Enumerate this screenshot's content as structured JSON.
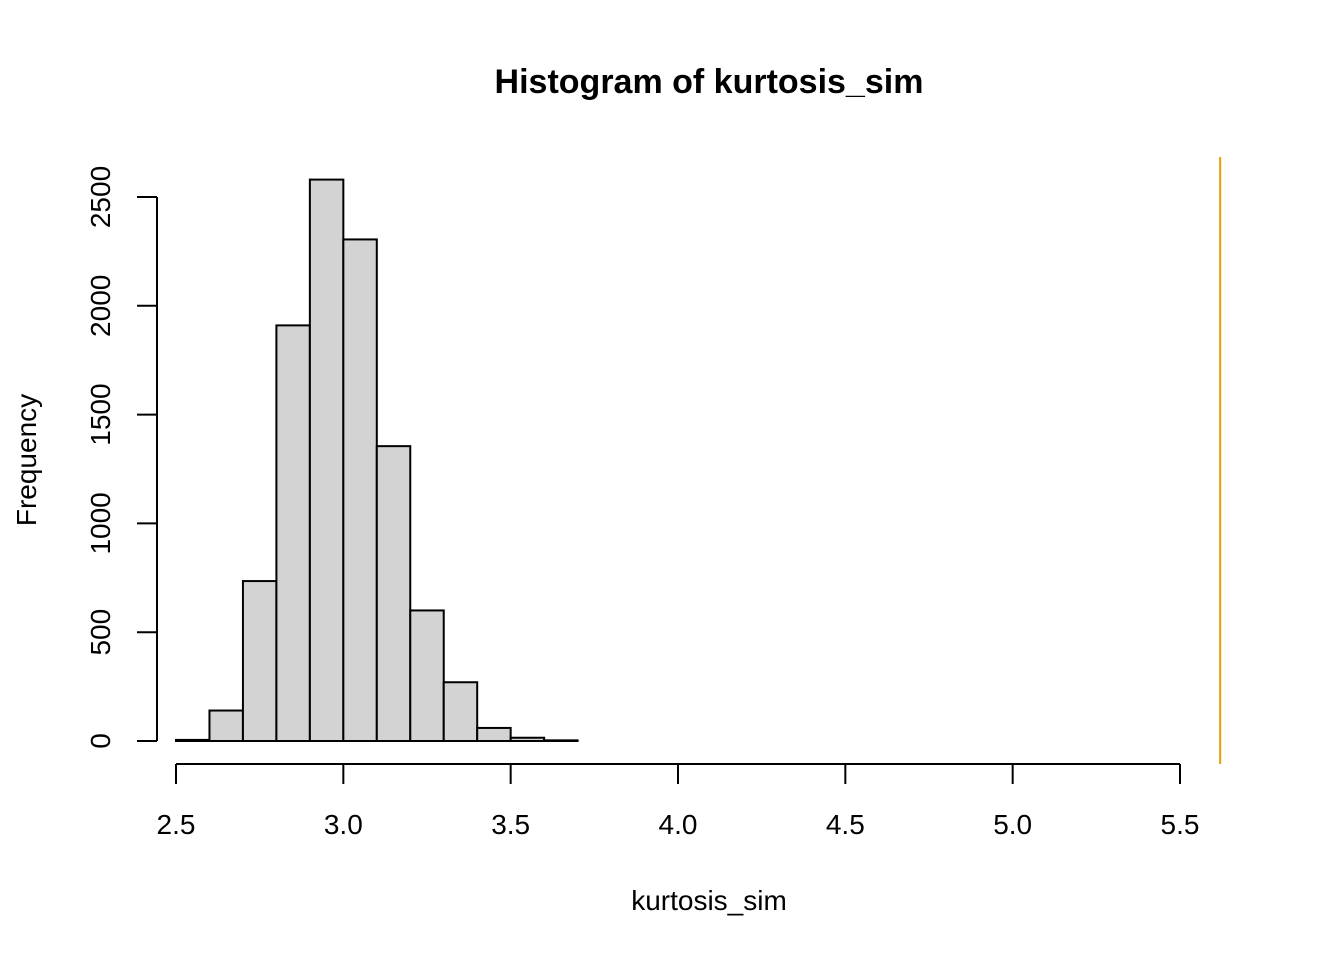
{
  "chart_data": {
    "type": "bar",
    "title": "Histogram of kurtosis_sim",
    "xlabel": "kurtosis_sim",
    "ylabel": "Frequency",
    "xlim": [
      2.5,
      5.5
    ],
    "ylim": [
      0,
      2500
    ],
    "x_ticks": [
      "2.5",
      "3.0",
      "3.5",
      "4.0",
      "4.5",
      "5.0",
      "5.5"
    ],
    "y_ticks": [
      "0",
      "500",
      "1000",
      "1500",
      "2000",
      "2500"
    ],
    "bins": [
      {
        "start": 2.5,
        "end": 2.6,
        "count": 5
      },
      {
        "start": 2.6,
        "end": 2.7,
        "count": 140
      },
      {
        "start": 2.7,
        "end": 2.8,
        "count": 735
      },
      {
        "start": 2.8,
        "end": 2.9,
        "count": 1910
      },
      {
        "start": 2.9,
        "end": 3.0,
        "count": 2580
      },
      {
        "start": 3.0,
        "end": 3.1,
        "count": 2305
      },
      {
        "start": 3.1,
        "end": 3.2,
        "count": 1355
      },
      {
        "start": 3.2,
        "end": 3.3,
        "count": 600
      },
      {
        "start": 3.3,
        "end": 3.4,
        "count": 270
      },
      {
        "start": 3.4,
        "end": 3.5,
        "count": 60
      },
      {
        "start": 3.5,
        "end": 3.6,
        "count": 15
      },
      {
        "start": 3.6,
        "end": 3.7,
        "count": 3
      }
    ],
    "reference_line": {
      "x": 5.62,
      "color": "#E69F00"
    },
    "grid": false,
    "legend": "none"
  }
}
